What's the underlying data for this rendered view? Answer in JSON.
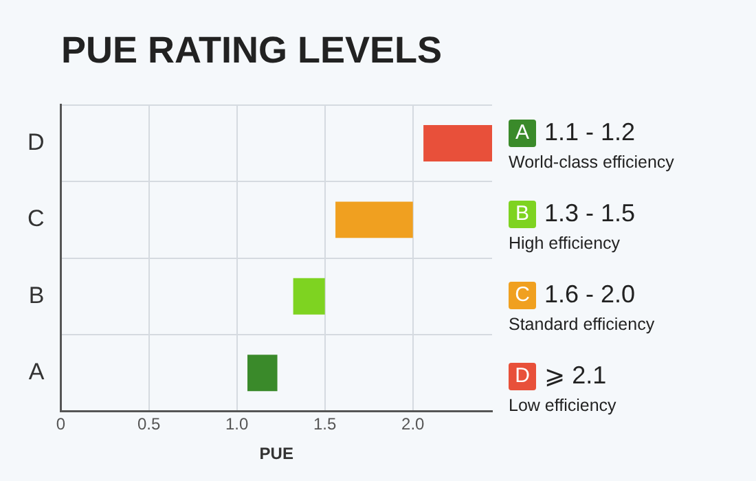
{
  "chart_data": {
    "type": "bar",
    "orientation": "horizontal",
    "title": "PUE RATING LEVELS",
    "xlabel": "PUE",
    "categories": [
      "D",
      "C",
      "B",
      "A"
    ],
    "base": [
      2.06,
      1.56,
      1.32,
      1.06
    ],
    "values": [
      0.39,
      0.44,
      0.18,
      0.17
    ],
    "colors": [
      "#e8503a",
      "#f0a020",
      "#7ed321",
      "#3a8a2a"
    ],
    "xlim": [
      0,
      2.45
    ],
    "xticks": [
      0,
      0.5,
      {
        "value": 1,
        "label": "1.0"
      },
      1.5,
      {
        "value": 2,
        "label": "2.0"
      }
    ],
    "grid": true,
    "annotations": [
      "1.1 - 1.2",
      "World-class efficiency",
      "1.3 - 1.5",
      "High efficiency",
      "1.6 - 2.0",
      "Standard efficiency",
      "⩾ 2.1",
      "Low efficiency"
    ]
  }
}
